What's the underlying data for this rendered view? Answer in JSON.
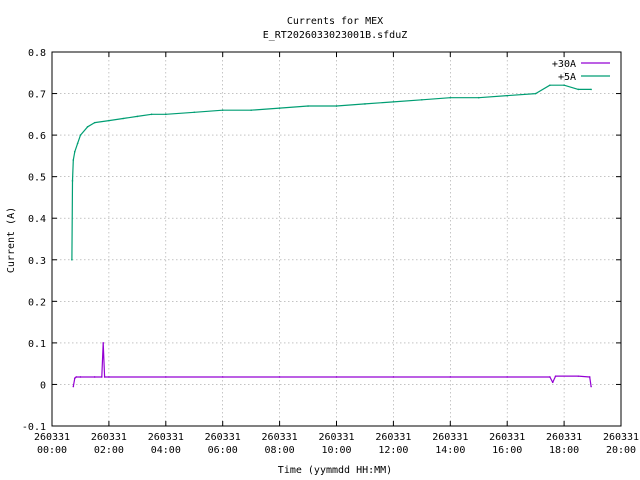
{
  "chart_data": {
    "type": "line",
    "title": "Currents for MEX",
    "subtitle": "E_RT2026033023001B.sfduZ",
    "xlabel": "Time (yymmdd HH:MM)",
    "ylabel": "Current (A)",
    "xlim": [
      0,
      20
    ],
    "ylim": [
      -0.1,
      0.8
    ],
    "grid": true,
    "legend_position": "top-right",
    "x_ticks": [
      {
        "x": 0,
        "date": "260331",
        "time": "00:00"
      },
      {
        "x": 2,
        "date": "260331",
        "time": "02:00"
      },
      {
        "x": 4,
        "date": "260331",
        "time": "04:00"
      },
      {
        "x": 6,
        "date": "260331",
        "time": "06:00"
      },
      {
        "x": 8,
        "date": "260331",
        "time": "08:00"
      },
      {
        "x": 10,
        "date": "260331",
        "time": "10:00"
      },
      {
        "x": 12,
        "date": "260331",
        "time": "12:00"
      },
      {
        "x": 14,
        "date": "260331",
        "time": "14:00"
      },
      {
        "x": 16,
        "date": "260331",
        "time": "16:00"
      },
      {
        "x": 18,
        "date": "260331",
        "time": "18:00"
      },
      {
        "x": 20,
        "date": "260331",
        "time": "20:00"
      }
    ],
    "y_ticks": [
      "-0.1",
      "0",
      "0.1",
      "0.2",
      "0.3",
      "0.4",
      "0.5",
      "0.6",
      "0.7",
      "0.8"
    ],
    "series": [
      {
        "name": "+30A",
        "color": "#9400d3",
        "x": [
          0.75,
          0.8,
          0.85,
          1.0,
          1.5,
          1.75,
          1.8,
          1.85,
          2.0,
          4.0,
          6.0,
          8.0,
          10.0,
          12.0,
          14.0,
          16.0,
          17.5,
          17.6,
          17.7,
          18.5,
          18.9,
          18.95
        ],
        "y": [
          -0.005,
          0.015,
          0.018,
          0.018,
          0.018,
          0.018,
          0.1,
          0.018,
          0.018,
          0.018,
          0.018,
          0.018,
          0.018,
          0.018,
          0.018,
          0.018,
          0.018,
          0.005,
          0.02,
          0.02,
          0.018,
          -0.005
        ]
      },
      {
        "name": "+5A",
        "color": "#009e73",
        "x": [
          0.7,
          0.72,
          0.75,
          0.8,
          0.9,
          1.0,
          1.25,
          1.5,
          2.0,
          2.5,
          3.0,
          3.5,
          4.0,
          5.0,
          6.0,
          7.0,
          8.0,
          9.0,
          10.0,
          11.0,
          12.0,
          13.0,
          14.0,
          15.0,
          16.0,
          17.0,
          17.5,
          18.0,
          18.5,
          18.95
        ],
        "y": [
          0.3,
          0.49,
          0.54,
          0.56,
          0.58,
          0.6,
          0.62,
          0.63,
          0.635,
          0.64,
          0.645,
          0.65,
          0.65,
          0.655,
          0.66,
          0.66,
          0.665,
          0.67,
          0.67,
          0.675,
          0.68,
          0.685,
          0.69,
          0.69,
          0.695,
          0.7,
          0.72,
          0.72,
          0.71,
          0.71
        ]
      }
    ]
  },
  "colors": {
    "grid": "#a0a0a0",
    "axis": "#000000"
  }
}
